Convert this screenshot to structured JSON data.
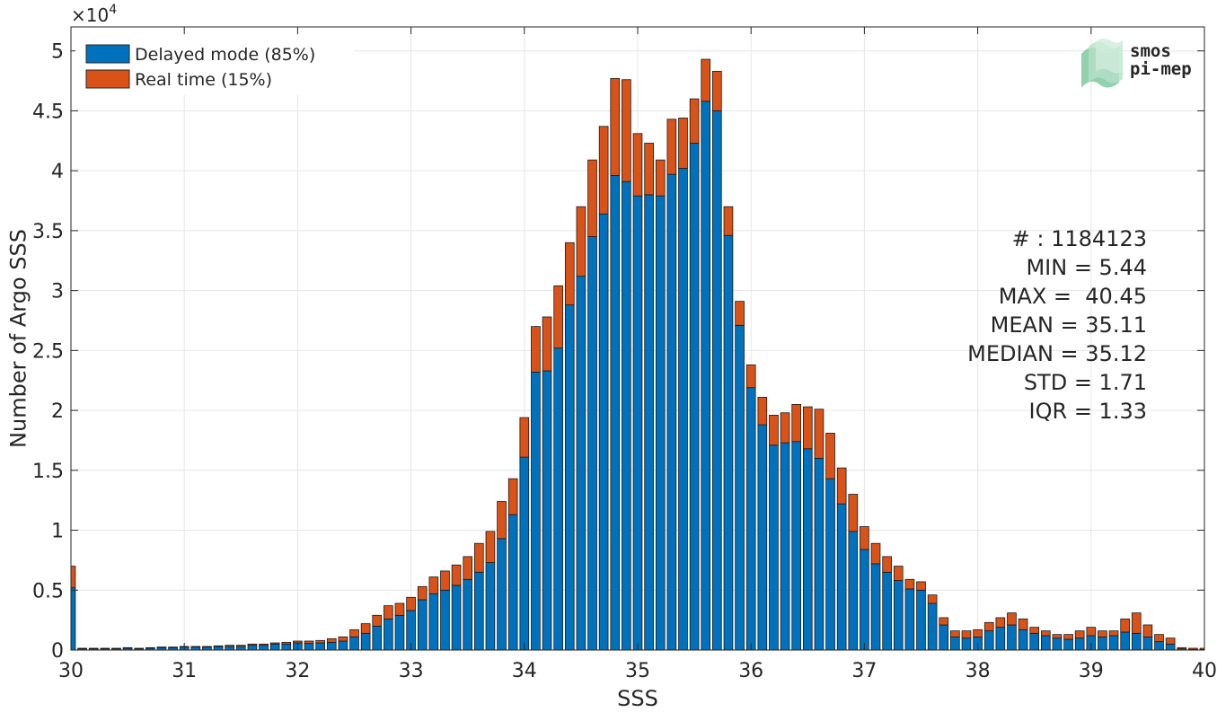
{
  "chart_data": {
    "type": "bar",
    "stacked": true,
    "xlabel": "SSS",
    "ylabel": "Number of Argo SSS",
    "y_exponent_label": "×10",
    "y_exponent": "4",
    "xlim": [
      30,
      40
    ],
    "ylim": [
      0,
      5.2
    ],
    "x_ticks": [
      "30",
      "31",
      "32",
      "33",
      "34",
      "35",
      "36",
      "37",
      "38",
      "39",
      "40"
    ],
    "y_ticks": [
      "0",
      "0.5",
      "1",
      "1.5",
      "2",
      "2.5",
      "3",
      "3.5",
      "4",
      "4.5",
      "5"
    ],
    "grid": true,
    "legend_position": "top-left",
    "bin_width": 0.1,
    "x": [
      30.0,
      30.1,
      30.2,
      30.3,
      30.4,
      30.5,
      30.6,
      30.7,
      30.8,
      30.9,
      31.0,
      31.1,
      31.2,
      31.3,
      31.4,
      31.5,
      31.6,
      31.7,
      31.8,
      31.9,
      32.0,
      32.1,
      32.2,
      32.3,
      32.4,
      32.5,
      32.6,
      32.7,
      32.8,
      32.9,
      33.0,
      33.1,
      33.2,
      33.3,
      33.4,
      33.5,
      33.6,
      33.7,
      33.8,
      33.9,
      34.0,
      34.1,
      34.2,
      34.3,
      34.4,
      34.5,
      34.6,
      34.7,
      34.8,
      34.9,
      35.0,
      35.1,
      35.2,
      35.3,
      35.4,
      35.5,
      35.6,
      35.7,
      35.8,
      35.9,
      36.0,
      36.1,
      36.2,
      36.3,
      36.4,
      36.5,
      36.6,
      36.7,
      36.8,
      36.9,
      37.0,
      37.1,
      37.2,
      37.3,
      37.4,
      37.5,
      37.6,
      37.7,
      37.8,
      37.9,
      38.0,
      38.1,
      38.2,
      38.3,
      38.4,
      38.5,
      38.6,
      38.7,
      38.8,
      38.9,
      39.0,
      39.1,
      39.2,
      39.3,
      39.4,
      39.5,
      39.6,
      39.7,
      39.8,
      39.9,
      40.0
    ],
    "series": [
      {
        "name": "Delayed mode (85%)",
        "color": "#0072bd",
        "values": [
          0.52,
          0.01,
          0.01,
          0.01,
          0.01,
          0.015,
          0.01,
          0.015,
          0.02,
          0.02,
          0.025,
          0.025,
          0.025,
          0.03,
          0.03,
          0.03,
          0.04,
          0.04,
          0.05,
          0.05,
          0.06,
          0.055,
          0.06,
          0.065,
          0.075,
          0.11,
          0.14,
          0.2,
          0.26,
          0.29,
          0.33,
          0.42,
          0.47,
          0.5,
          0.54,
          0.59,
          0.65,
          0.73,
          0.93,
          1.13,
          1.61,
          2.32,
          2.33,
          2.52,
          2.88,
          3.12,
          3.45,
          3.64,
          3.96,
          3.91,
          3.79,
          3.8,
          3.79,
          3.97,
          4.02,
          4.23,
          4.58,
          4.5,
          3.46,
          2.71,
          2.19,
          1.88,
          1.71,
          1.73,
          1.74,
          1.68,
          1.6,
          1.43,
          1.22,
          0.99,
          0.84,
          0.72,
          0.65,
          0.58,
          0.51,
          0.5,
          0.39,
          0.21,
          0.11,
          0.1,
          0.11,
          0.16,
          0.19,
          0.21,
          0.17,
          0.14,
          0.12,
          0.1,
          0.09,
          0.1,
          0.12,
          0.11,
          0.12,
          0.15,
          0.14,
          0.11,
          0.07,
          0.05,
          0.01,
          0.005,
          0.005
        ]
      },
      {
        "name": "Real time (15%)",
        "color": "#d95319",
        "values": [
          0.18,
          0.005,
          0.005,
          0.005,
          0.005,
          0.005,
          0.005,
          0.005,
          0.005,
          0.005,
          0.005,
          0.005,
          0.005,
          0.005,
          0.01,
          0.01,
          0.01,
          0.01,
          0.01,
          0.015,
          0.015,
          0.02,
          0.02,
          0.03,
          0.035,
          0.06,
          0.08,
          0.09,
          0.11,
          0.1,
          0.11,
          0.11,
          0.14,
          0.16,
          0.17,
          0.19,
          0.24,
          0.26,
          0.31,
          0.3,
          0.33,
          0.38,
          0.45,
          0.52,
          0.52,
          0.58,
          0.64,
          0.73,
          0.81,
          0.85,
          0.52,
          0.43,
          0.3,
          0.46,
          0.42,
          0.37,
          0.35,
          0.33,
          0.24,
          0.2,
          0.19,
          0.23,
          0.25,
          0.25,
          0.31,
          0.35,
          0.41,
          0.38,
          0.3,
          0.31,
          0.19,
          0.17,
          0.13,
          0.12,
          0.08,
          0.07,
          0.07,
          0.06,
          0.05,
          0.06,
          0.06,
          0.07,
          0.08,
          0.1,
          0.09,
          0.05,
          0.04,
          0.03,
          0.04,
          0.06,
          0.07,
          0.05,
          0.04,
          0.11,
          0.17,
          0.1,
          0.06,
          0.05,
          0.01,
          0.01,
          0.01
        ]
      }
    ],
    "stats_lines": [
      "# : 1184123",
      "MIN = 5.44",
      "MAX =  40.45",
      "MEAN = 35.11",
      "MEDIAN = 35.12",
      "STD = 1.71",
      "IQR = 1.33"
    ],
    "logo": {
      "line1": "smos",
      "line2": "pi-mep",
      "color": "#7ec9a0"
    }
  }
}
